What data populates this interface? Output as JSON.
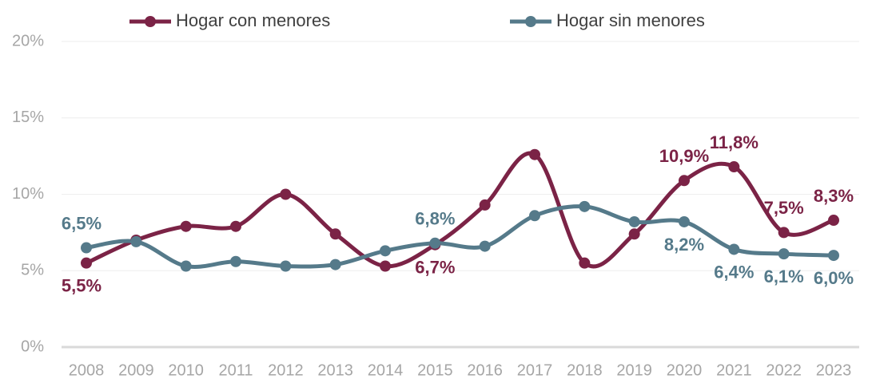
{
  "chart_data": {
    "type": "line",
    "categories": [
      "2008",
      "2009",
      "2010",
      "2011",
      "2012",
      "2013",
      "2014",
      "2015",
      "2016",
      "2017",
      "2018",
      "2019",
      "2020",
      "2021",
      "2022",
      "2023"
    ],
    "series": [
      {
        "name": "Hogar con menores",
        "color": "#7b2346",
        "values": [
          5.5,
          7.0,
          7.9,
          7.9,
          10.0,
          7.4,
          5.3,
          6.7,
          9.3,
          12.6,
          5.5,
          7.4,
          10.9,
          11.8,
          7.5,
          8.3
        ],
        "value_labels": [
          "5,5%",
          null,
          null,
          null,
          null,
          null,
          null,
          "6,7%",
          null,
          null,
          null,
          null,
          "10,9%",
          "11,8%",
          "7,5%",
          "8,3%"
        ]
      },
      {
        "name": "Hogar sin menores",
        "color": "#557a8a",
        "values": [
          6.5,
          6.9,
          5.3,
          5.6,
          5.3,
          5.4,
          6.3,
          6.8,
          6.6,
          8.6,
          9.2,
          8.2,
          8.2,
          6.4,
          6.1,
          6.0
        ],
        "value_labels": [
          "6,5%",
          null,
          null,
          null,
          null,
          null,
          null,
          "6,8%",
          null,
          null,
          null,
          null,
          "8,2%",
          "6,4%",
          "6,1%",
          "6,0%"
        ]
      }
    ],
    "ylim": [
      0,
      20
    ],
    "yticks": [
      {
        "value": 0,
        "label": "0%"
      },
      {
        "value": 5,
        "label": "5%"
      },
      {
        "value": 10,
        "label": "10%"
      },
      {
        "value": 15,
        "label": "15%"
      },
      {
        "value": 20,
        "label": "20%"
      }
    ],
    "grid": true,
    "legend": "top"
  }
}
